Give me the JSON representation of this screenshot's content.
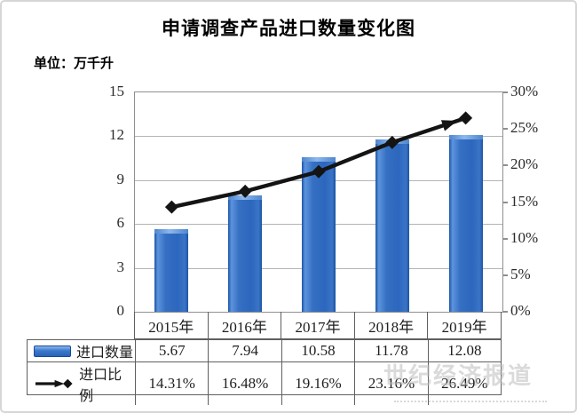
{
  "figure": {
    "title": "申请调查产品进口数量变化图",
    "unit_label": "单位：万千升"
  },
  "chart_data": {
    "type": "bar+line",
    "title": "申请调查产品进口数量变化图",
    "unit": "万千升",
    "categories": [
      "2015年",
      "2016年",
      "2017年",
      "2018年",
      "2019年"
    ],
    "series": [
      {
        "name": "进口数量",
        "type": "bar",
        "axis": "left",
        "values": [
          5.67,
          7.94,
          10.58,
          11.78,
          12.08
        ],
        "color": "#2d6bc4"
      },
      {
        "name": "进口比例",
        "type": "line",
        "axis": "right",
        "values": [
          14.31,
          16.48,
          19.16,
          23.16,
          26.49
        ],
        "display_values": [
          "14.31%",
          "16.48%",
          "19.16%",
          "23.16%",
          "26.49%"
        ],
        "color": "#141414",
        "marker": "diamond",
        "end_arrow": true
      }
    ],
    "left_axis": {
      "min": 0,
      "max": 15,
      "ticks": [
        "15",
        "12",
        "9",
        "6",
        "3",
        "0"
      ]
    },
    "right_axis": {
      "min": 0,
      "max": 30,
      "ticks": [
        "30%",
        "25%",
        "20%",
        "15%",
        "10%",
        "5%",
        "0%"
      ]
    },
    "grid": true,
    "legend_position": "table-left"
  },
  "table": {
    "quantity_label": "进口数量",
    "ratio_label": "进口比例",
    "quantity_values": [
      "5.67",
      "7.94",
      "10.58",
      "11.78",
      "12.08"
    ],
    "ratio_values": [
      "14.31%",
      "16.48%",
      "19.16%",
      "23.16%",
      "26.49%"
    ]
  },
  "watermark_text": "世纪经济报道",
  "colors": {
    "bar_blue": "#2d6bc4",
    "bar_cap": "#8cb8ec",
    "line_black": "#141414",
    "gridline": "#b4b4b4",
    "plot_border": "#8f8f8f",
    "table_border": "#5f5f5f",
    "watermark_gray": "#bdbdbd"
  }
}
